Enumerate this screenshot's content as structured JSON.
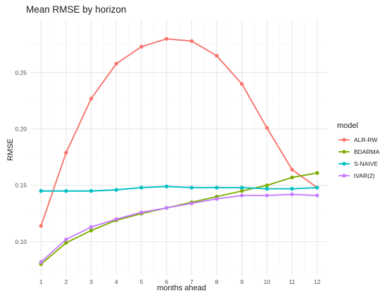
{
  "chart_data": {
    "type": "line",
    "title": "Mean RMSE by horizon",
    "xlabel": "months ahead",
    "ylabel": "RMSE",
    "x": [
      1,
      2,
      3,
      4,
      5,
      6,
      7,
      8,
      9,
      10,
      11,
      12
    ],
    "xlim": [
      0.6,
      12.4
    ],
    "ylim": [
      0.07,
      0.297
    ],
    "yticks": [
      0.1,
      0.15,
      0.2,
      0.25
    ],
    "ytick_labels": [
      "0.10",
      "0.15",
      "0.20",
      "0.25"
    ],
    "grid": true,
    "legend": {
      "title": "model",
      "placement": "right"
    },
    "series": [
      {
        "name": "ALR-RW",
        "color": "#F8766D",
        "values": [
          0.114,
          0.179,
          0.227,
          0.258,
          0.273,
          0.28,
          0.278,
          0.265,
          0.24,
          0.201,
          0.164,
          0.148
        ]
      },
      {
        "name": "BDARMA",
        "color": "#7CAE00",
        "values": [
          0.08,
          0.099,
          0.11,
          0.119,
          0.125,
          0.13,
          0.135,
          0.14,
          0.145,
          0.15,
          0.157,
          0.161
        ]
      },
      {
        "name": "S-NAIVE",
        "color": "#00BFC4",
        "values": [
          0.145,
          0.145,
          0.145,
          0.146,
          0.148,
          0.149,
          0.148,
          0.148,
          0.148,
          0.147,
          0.147,
          0.148
        ]
      },
      {
        "name": "tVAR(2)",
        "color": "#C77CFF",
        "values": [
          0.082,
          0.102,
          0.113,
          0.12,
          0.126,
          0.13,
          0.134,
          0.138,
          0.141,
          0.141,
          0.142,
          0.141
        ]
      }
    ]
  }
}
